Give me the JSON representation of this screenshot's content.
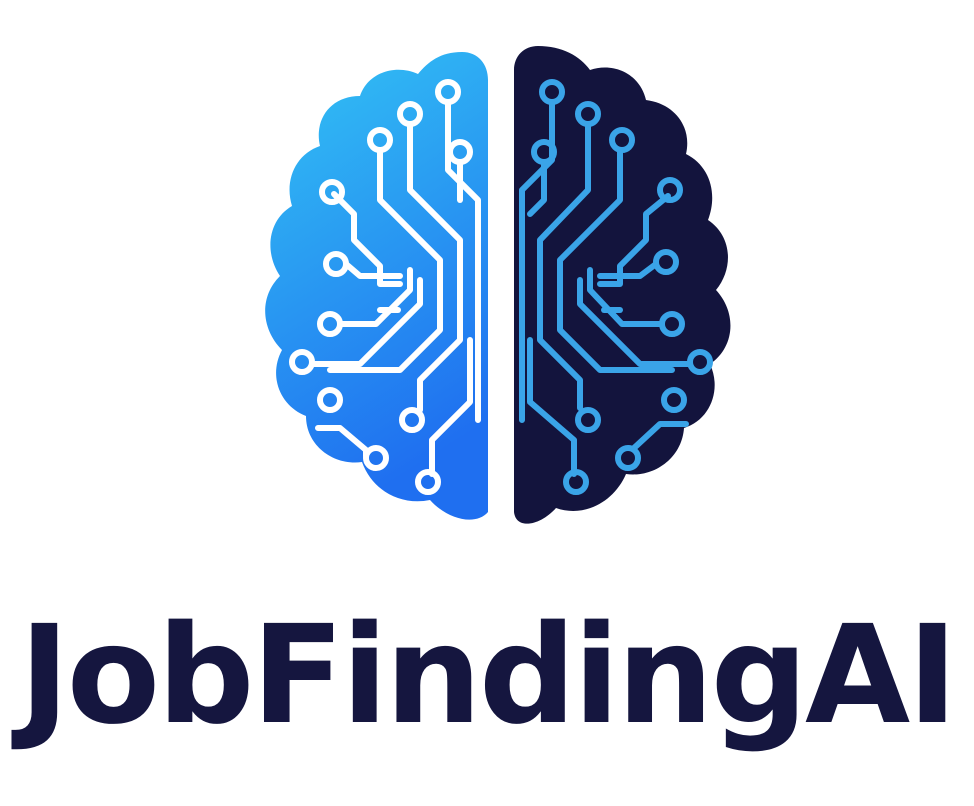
{
  "brand": {
    "name": "JobFindingAI",
    "logo_icon": "circuit-brain-icon"
  },
  "colors": {
    "left_brain_top": "#33c4f4",
    "left_brain_bottom": "#1f6ff0",
    "right_brain": "#13143d",
    "left_circuits": "#ffffff",
    "right_circuits": "#3aa4e8",
    "wordmark": "#15163f",
    "background": "#ffffff"
  }
}
